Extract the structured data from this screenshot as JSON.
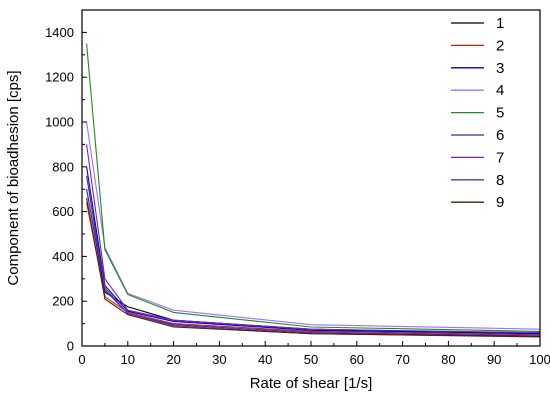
{
  "chart_data": {
    "type": "line",
    "title": "",
    "xlabel": "Rate of shear [1/s]",
    "ylabel": "Component of bioadhesion [cps]",
    "xlim": [
      0,
      100
    ],
    "ylim": [
      0,
      1500
    ],
    "xticks": [
      0,
      10,
      20,
      30,
      40,
      50,
      60,
      70,
      80,
      90,
      100
    ],
    "yticks": [
      0,
      200,
      400,
      600,
      800,
      1000,
      1200,
      1400
    ],
    "grid": false,
    "legend_position": "top-right",
    "x": [
      1,
      5,
      10,
      20,
      50,
      100
    ],
    "series": [
      {
        "name": "1",
        "color": "#000000",
        "values": [
          700,
          240,
          175,
          115,
          75,
          55
        ]
      },
      {
        "name": "2",
        "color": "#cc2200",
        "values": [
          640,
          220,
          150,
          100,
          65,
          50
        ]
      },
      {
        "name": "3",
        "color": "#0000cc",
        "values": [
          800,
          270,
          155,
          110,
          70,
          55
        ]
      },
      {
        "name": "4",
        "color": "#a070ff",
        "values": [
          1000,
          440,
          235,
          160,
          95,
          75
        ]
      },
      {
        "name": "5",
        "color": "#1e8c1e",
        "values": [
          1350,
          430,
          230,
          150,
          85,
          65
        ]
      },
      {
        "name": "6",
        "color": "#3030a0",
        "values": [
          760,
          250,
          145,
          95,
          60,
          45
        ]
      },
      {
        "name": "7",
        "color": "#7a1fd6",
        "values": [
          900,
          300,
          160,
          115,
          75,
          60
        ]
      },
      {
        "name": "8",
        "color": "#5a3a9c",
        "values": [
          700,
          260,
          145,
          90,
          55,
          40
        ]
      },
      {
        "name": "9",
        "color": "#4a1e10",
        "values": [
          660,
          210,
          140,
          85,
          55,
          42
        ]
      }
    ]
  }
}
